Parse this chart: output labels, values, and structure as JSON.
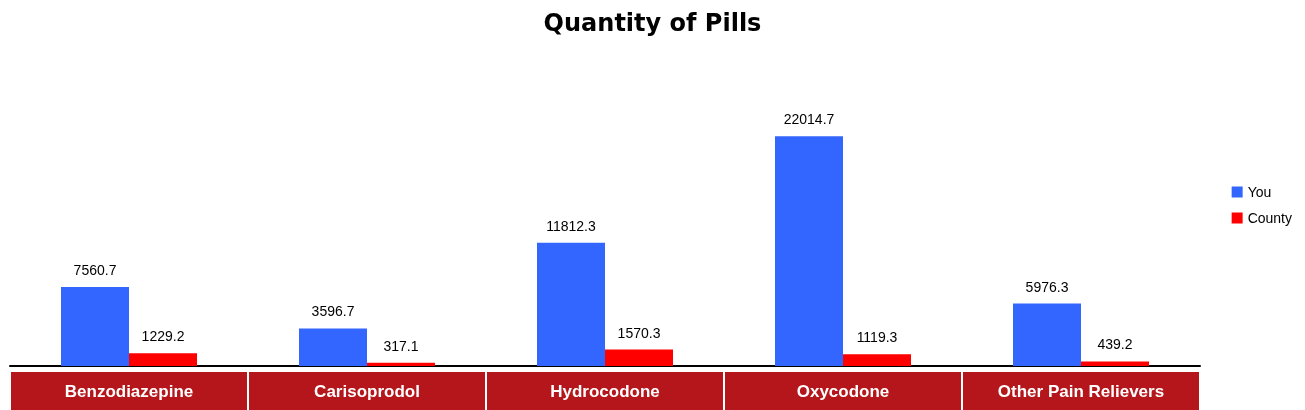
{
  "chart_data": {
    "type": "bar",
    "title": "Quantity of Pills",
    "categories": [
      "Benzodiazepine",
      "Carisoprodol",
      "Hydrocodone",
      "Oxycodone",
      "Other Pain Relievers"
    ],
    "series": [
      {
        "name": "You",
        "color": "#3366ff",
        "values": [
          7560.7,
          3596.7,
          11812.3,
          22014.7,
          5976.3
        ]
      },
      {
        "name": "County",
        "color": "#ff0000",
        "values": [
          1229.2,
          317.1,
          1570.3,
          1119.3,
          439.2
        ]
      }
    ],
    "data_labels": true,
    "legend": "right",
    "grid": false,
    "tick_labels": "x"
  }
}
